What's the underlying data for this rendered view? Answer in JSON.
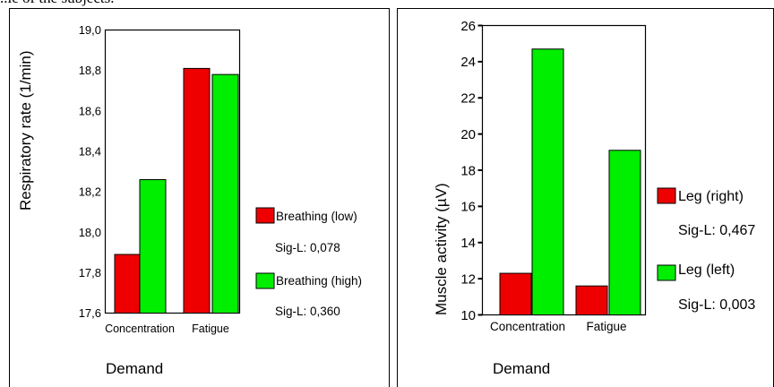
{
  "header_fragment": "..le of the subjects.",
  "chart_data": [
    {
      "type": "bar",
      "categories": [
        "Concentration",
        "Fatigue"
      ],
      "series": [
        {
          "name": "Breathing  (low)",
          "values": [
            17.89,
            18.81
          ],
          "color": "#ee0000",
          "sig": "Sig-L: 0,078"
        },
        {
          "name": "Breathing (high)",
          "values": [
            18.26,
            18.78
          ],
          "color": "#00ee00",
          "sig": "Sig-L: 0,360"
        }
      ],
      "ylabel": "Respiratory rate  (1/min)",
      "xlabel": "Demand",
      "ylim": [
        17.6,
        19.0
      ],
      "yticks": [
        "17,6",
        "17,8",
        "18,0",
        "18,2",
        "18,4",
        "18,6",
        "18,8",
        "19,0"
      ],
      "grid": false,
      "legend_position": "right"
    },
    {
      "type": "bar",
      "categories": [
        "Concentration",
        "Fatigue"
      ],
      "series": [
        {
          "name": "Leg  (right)",
          "values": [
            12.3,
            11.6
          ],
          "color": "#ee0000",
          "sig": "Sig-L: 0,467"
        },
        {
          "name": "Leg  (left)",
          "values": [
            24.7,
            19.1
          ],
          "color": "#00ee00",
          "sig": "Sig-L: 0,003"
        }
      ],
      "ylabel": "Muscle activity  (µV)",
      "xlabel": "Demand",
      "ylim": [
        10,
        26
      ],
      "yticks": [
        "10",
        "12",
        "14",
        "16",
        "18",
        "20",
        "22",
        "24",
        "26"
      ],
      "grid": false,
      "legend_position": "right"
    }
  ]
}
